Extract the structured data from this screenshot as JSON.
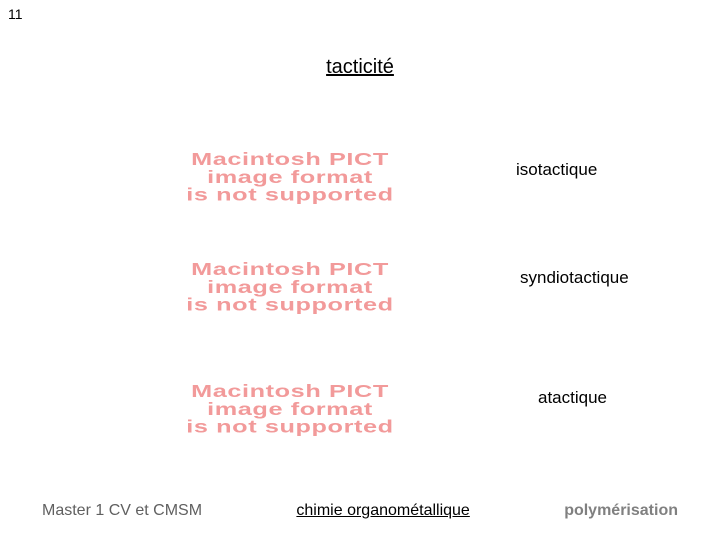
{
  "page_number": "11",
  "title": "tacticité",
  "pict_error": {
    "line1": "Macintosh PICT",
    "line2": "image format",
    "line3": "is not supported",
    "color": "#f29a9a",
    "font_size": 22,
    "font_weight": 900
  },
  "labels": [
    {
      "text": "isotactique"
    },
    {
      "text": "syndiotactique"
    },
    {
      "text": "atactique"
    }
  ],
  "footer": {
    "left": "Master 1 CV et CMSM",
    "center": "chimie organométallique",
    "right": "polymérisation"
  },
  "colors": {
    "background": "#ffffff",
    "text": "#000000",
    "footer_left": "#606060",
    "footer_right": "#808080"
  }
}
